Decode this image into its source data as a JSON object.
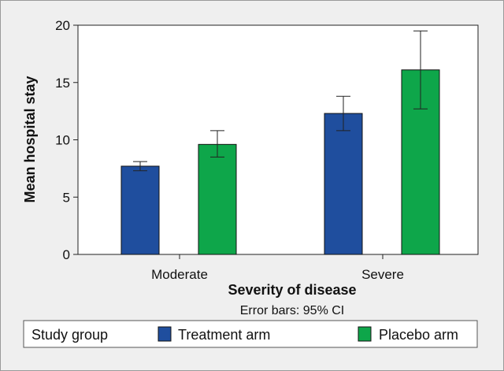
{
  "chart_data": {
    "type": "bar",
    "title": "",
    "xlabel": "Severity of disease",
    "ylabel": "Mean hospital stay",
    "note": "Error bars: 95% CI",
    "categories": [
      "Moderate",
      "Severe"
    ],
    "ylim": [
      0,
      20
    ],
    "yticks": [
      0,
      5,
      10,
      15,
      20
    ],
    "grid": false,
    "legend": {
      "title": "Study group",
      "position": "bottom"
    },
    "series": [
      {
        "name": "Treatment arm",
        "color": "#1f4e9e",
        "values": [
          7.7,
          12.3
        ],
        "ci_low": [
          7.3,
          10.8
        ],
        "ci_high": [
          8.1,
          13.8
        ]
      },
      {
        "name": "Placebo arm",
        "color": "#0ea64a",
        "values": [
          9.6,
          16.1
        ],
        "ci_low": [
          8.5,
          12.7
        ],
        "ci_high": [
          10.8,
          19.5
        ]
      }
    ]
  }
}
